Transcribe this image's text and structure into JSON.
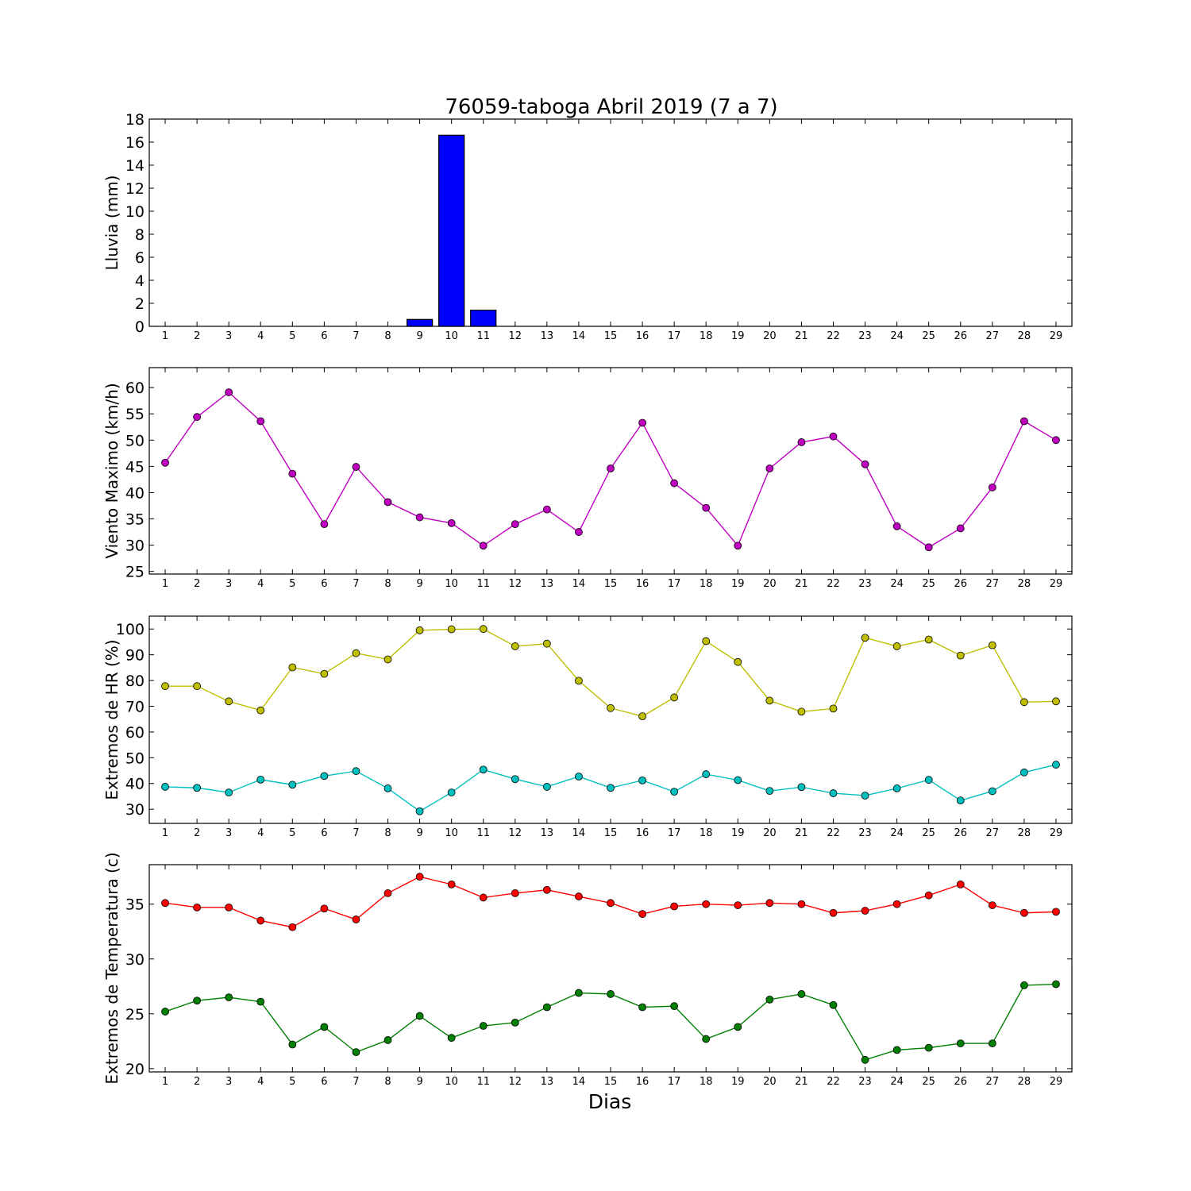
{
  "figure": {
    "title": "76059-taboga Abril 2019  (7 a 7)",
    "xlabel": "Dias"
  },
  "chart_data": [
    {
      "type": "bar",
      "ylabel": "Lluvia (mm)",
      "x": [
        1,
        2,
        3,
        4,
        5,
        6,
        7,
        8,
        9,
        10,
        11,
        12,
        13,
        14,
        15,
        16,
        17,
        18,
        19,
        20,
        21,
        22,
        23,
        24,
        25,
        26,
        27,
        28,
        29
      ],
      "ylim": [
        0,
        18
      ],
      "yticks": [
        0,
        2,
        4,
        6,
        8,
        10,
        12,
        14,
        16,
        18
      ],
      "series": [
        {
          "color": "#0000ff",
          "values": [
            0,
            0,
            0,
            0,
            0,
            0,
            0,
            0,
            0.6,
            16.6,
            1.4,
            0,
            0,
            0,
            0,
            0,
            0,
            0,
            0,
            0,
            0,
            0,
            0,
            0,
            0,
            0,
            0,
            0,
            0
          ]
        }
      ]
    },
    {
      "type": "line",
      "ylabel": "Viento Maximo (km/h)",
      "x": [
        1,
        2,
        3,
        4,
        5,
        6,
        7,
        8,
        9,
        10,
        11,
        12,
        13,
        14,
        15,
        16,
        17,
        18,
        19,
        20,
        21,
        22,
        23,
        24,
        25,
        26,
        27,
        28,
        29
      ],
      "ylim": [
        24.5,
        63.8
      ],
      "yticks": [
        25,
        30,
        35,
        40,
        45,
        50,
        55,
        60
      ],
      "series": [
        {
          "color": "#bf00bf",
          "values": [
            45.7,
            54.4,
            59.1,
            53.6,
            43.6,
            34.0,
            44.9,
            38.2,
            35.3,
            34.2,
            29.9,
            34.0,
            36.8,
            32.5,
            44.6,
            53.3,
            41.8,
            37.1,
            29.9,
            44.6,
            49.6,
            50.7,
            45.4,
            33.6,
            29.6,
            33.2,
            41.0,
            53.6,
            50.0
          ]
        }
      ]
    },
    {
      "type": "line",
      "ylabel": "Extremos de HR (%)",
      "x": [
        1,
        2,
        3,
        4,
        5,
        6,
        7,
        8,
        9,
        10,
        11,
        12,
        13,
        14,
        15,
        16,
        17,
        18,
        19,
        20,
        21,
        22,
        23,
        24,
        25,
        26,
        27,
        28,
        29
      ],
      "ylim": [
        24.5,
        105
      ],
      "yticks": [
        30,
        40,
        50,
        60,
        70,
        80,
        90,
        100
      ],
      "series": [
        {
          "color": "#bfbf00",
          "values": [
            77.8,
            77.8,
            71.9,
            68.4,
            85.1,
            82.6,
            90.6,
            88.2,
            99.5,
            99.9,
            100.0,
            93.3,
            94.3,
            79.9,
            69.3,
            66.1,
            73.4,
            95.3,
            87.2,
            72.2,
            67.9,
            69.1,
            96.6,
            93.3,
            95.9,
            89.7,
            93.7,
            71.6,
            71.9
          ]
        },
        {
          "color": "#00bfbf",
          "values": [
            38.7,
            38.3,
            36.5,
            41.5,
            39.5,
            42.9,
            44.8,
            38.1,
            29.2,
            36.5,
            45.4,
            41.7,
            38.7,
            42.7,
            38.3,
            41.2,
            36.8,
            43.6,
            41.3,
            37.1,
            38.6,
            36.2,
            35.3,
            38.1,
            41.4,
            33.4,
            37.0,
            44.3,
            47.3
          ]
        }
      ]
    },
    {
      "type": "line",
      "ylabel": "Extremos de Temperatura (c)",
      "x": [
        1,
        2,
        3,
        4,
        5,
        6,
        7,
        8,
        9,
        10,
        11,
        12,
        13,
        14,
        15,
        16,
        17,
        18,
        19,
        20,
        21,
        22,
        23,
        24,
        25,
        26,
        27,
        28,
        29
      ],
      "ylim": [
        19.7,
        38.6
      ],
      "yticks": [
        20,
        25,
        30,
        35
      ],
      "series": [
        {
          "color": "#ff0000",
          "values": [
            35.1,
            34.7,
            34.7,
            33.5,
            32.9,
            34.6,
            33.6,
            36.0,
            37.5,
            36.8,
            35.6,
            36.0,
            36.3,
            35.7,
            35.1,
            34.1,
            34.8,
            35.0,
            34.9,
            35.1,
            35.0,
            34.2,
            34.4,
            35.0,
            35.8,
            36.8,
            34.9,
            34.2,
            34.3
          ]
        },
        {
          "color": "#007f00",
          "values": [
            25.2,
            26.2,
            26.5,
            26.1,
            22.2,
            23.8,
            21.5,
            22.6,
            24.8,
            22.8,
            23.9,
            24.2,
            25.6,
            26.9,
            26.8,
            25.6,
            25.7,
            22.7,
            23.8,
            26.3,
            26.8,
            25.8,
            20.8,
            21.7,
            21.9,
            22.3,
            22.3,
            27.6,
            27.7
          ]
        }
      ]
    }
  ]
}
